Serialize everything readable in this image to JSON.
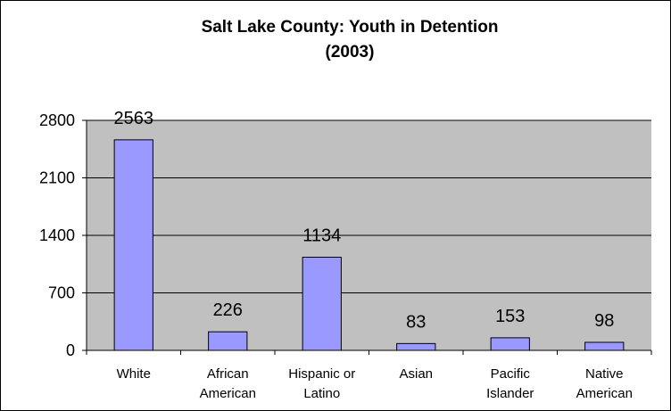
{
  "chart_data": {
    "type": "bar",
    "title_lines": [
      "Salt Lake County: Youth in Detention",
      "(2003)"
    ],
    "categories": [
      [
        "White"
      ],
      [
        "African",
        "American"
      ],
      [
        "Hispanic or",
        "Latino"
      ],
      [
        "Asian"
      ],
      [
        "Pacific",
        "Islander"
      ],
      [
        "Native",
        "American"
      ]
    ],
    "values": [
      2563,
      226,
      1134,
      83,
      153,
      98
    ],
    "data_labels": [
      "2563",
      "226",
      "1134",
      "83",
      "153",
      "98"
    ],
    "yticks": [
      0,
      700,
      1400,
      2100,
      2800
    ],
    "ylim": [
      0,
      2800
    ],
    "grid": true,
    "colors": {
      "plot_background": "#c0c0c0",
      "bar_fill": "#9999ff",
      "bar_stroke": "#000000",
      "gridline": "#000000"
    }
  }
}
